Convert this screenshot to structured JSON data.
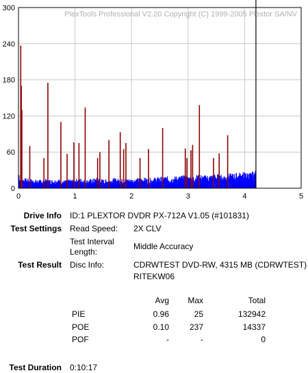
{
  "chart_data": {
    "type": "bar",
    "title": "PlexTools Professional V2.20 Copyright (C) 1999-2005 Plextor SA/NV",
    "xlabel": "",
    "ylabel": "",
    "xlim": [
      0,
      5
    ],
    "ylim": [
      0,
      300
    ],
    "x_ticks": [
      "0",
      "1",
      "2",
      "3",
      "4",
      "5"
    ],
    "y_ticks": [
      "0",
      "60",
      "120",
      "180",
      "240",
      "300"
    ],
    "grid": true,
    "disc_end_marker": 4.2,
    "colors": {
      "pie": "#0000ff",
      "poe": "#8b0000",
      "end_marker": "#000000",
      "grid": "#c8c8c8"
    },
    "series": [
      {
        "id": "pie",
        "baseline_avg": 0.96,
        "baseline_max": 25,
        "points": [
          [
            0.02,
            16
          ],
          [
            0.1,
            14
          ],
          [
            0.2,
            13
          ],
          [
            0.3,
            12
          ],
          [
            0.4,
            12
          ],
          [
            0.5,
            13
          ],
          [
            0.6,
            12
          ],
          [
            0.7,
            13
          ],
          [
            0.8,
            11
          ],
          [
            0.9,
            12
          ],
          [
            1.0,
            13
          ],
          [
            1.1,
            14
          ],
          [
            1.2,
            12
          ],
          [
            1.3,
            13
          ],
          [
            1.4,
            15
          ],
          [
            1.5,
            12
          ],
          [
            1.6,
            13
          ],
          [
            1.7,
            14
          ],
          [
            1.8,
            13
          ],
          [
            1.9,
            14
          ],
          [
            2.0,
            13
          ],
          [
            2.1,
            14
          ],
          [
            2.2,
            15
          ],
          [
            2.3,
            14
          ],
          [
            2.4,
            15
          ],
          [
            2.5,
            16
          ],
          [
            2.6,
            17
          ],
          [
            2.7,
            16
          ],
          [
            2.8,
            17
          ],
          [
            2.9,
            18
          ],
          [
            3.0,
            17
          ],
          [
            3.1,
            18
          ],
          [
            3.2,
            19
          ],
          [
            3.3,
            18
          ],
          [
            3.4,
            19
          ],
          [
            3.5,
            20
          ],
          [
            3.6,
            19
          ],
          [
            3.7,
            20
          ],
          [
            3.8,
            21
          ],
          [
            3.9,
            22
          ],
          [
            4.0,
            23
          ],
          [
            4.1,
            22
          ],
          [
            4.2,
            25
          ]
        ]
      },
      {
        "id": "poe",
        "spikes": [
          [
            0.04,
            237
          ],
          [
            0.05,
            170
          ],
          [
            0.06,
            130
          ],
          [
            0.2,
            70
          ],
          [
            0.45,
            50
          ],
          [
            0.52,
            175
          ],
          [
            0.75,
            110
          ],
          [
            0.86,
            57
          ],
          [
            0.98,
            76
          ],
          [
            1.07,
            75
          ],
          [
            1.18,
            134
          ],
          [
            1.4,
            50
          ],
          [
            1.44,
            60
          ],
          [
            1.6,
            80
          ],
          [
            1.8,
            93
          ],
          [
            1.86,
            65
          ],
          [
            1.9,
            75
          ],
          [
            2.15,
            50
          ],
          [
            2.3,
            65
          ],
          [
            2.55,
            100
          ],
          [
            2.95,
            66
          ],
          [
            2.98,
            50
          ],
          [
            3.05,
            63
          ],
          [
            3.08,
            72
          ],
          [
            3.2,
            138
          ],
          [
            3.45,
            50
          ],
          [
            3.55,
            58
          ],
          [
            3.7,
            88
          ]
        ]
      }
    ]
  },
  "info": {
    "drive_info_label": "Drive Info",
    "drive_info_value": "ID:1 PLEXTOR DVDR PX-712A V1.05 (#101831)",
    "test_settings_label": "Test Settings",
    "read_speed_label": "Read Speed:",
    "read_speed_value": "2X CLV",
    "interval_label_1": "Test Interval",
    "interval_label_2": "Length:",
    "interval_value": "Middle Accuracy",
    "test_result_label": "Test Result",
    "disc_info_label": "Disc Info:",
    "disc_info_value_1": "CDRWTEST DVD-RW, 4315 MB (CDRWTEST)",
    "disc_info_value_2": "RITEKW06"
  },
  "stats": {
    "header_avg": "Avg",
    "header_max": "Max",
    "header_total": "Total",
    "rows": [
      {
        "name": "PIE",
        "avg": "0.96",
        "max": "25",
        "total": "132942"
      },
      {
        "name": "POE",
        "avg": "0.10",
        "max": "237",
        "total": "14337"
      },
      {
        "name": "POF",
        "avg": "-",
        "max": "-",
        "total": "0"
      }
    ]
  },
  "duration": {
    "label": "Test Duration",
    "value": "0:10:17"
  }
}
